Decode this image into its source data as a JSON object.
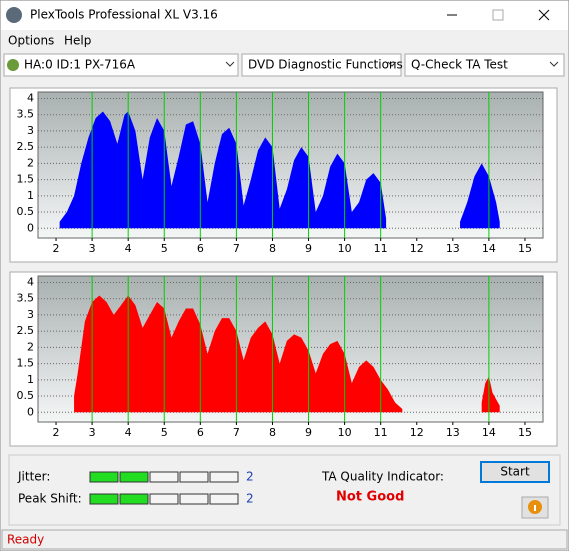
{
  "window_title": "PlexTools Professional XL V3.16",
  "menu": [
    "Options",
    "Help"
  ],
  "toolbar": {
    "drive": "HA:0 ID:1  PX-716A",
    "function": "DVD Diagnostic Functions",
    "test": "Q-Check TA Test"
  },
  "chart_data": [
    {
      "type": "area",
      "color": "#0000ff",
      "xlim": [
        1.5,
        15.5
      ],
      "ylim": [
        -0.3,
        4.2
      ],
      "xticks": [
        2,
        3,
        4,
        5,
        6,
        7,
        8,
        9,
        10,
        11,
        12,
        13,
        14,
        15
      ],
      "yticks": [
        0,
        0.5,
        1,
        1.5,
        2,
        2.5,
        3,
        3.5,
        4
      ],
      "grid": true,
      "markers": [
        3,
        4,
        5,
        6,
        7,
        8,
        9,
        10,
        11,
        14
      ],
      "x": [
        2.1,
        2.3,
        2.5,
        2.7,
        2.9,
        3.1,
        3.3,
        3.5,
        3.7,
        3.9,
        4.0,
        4.2,
        4.4,
        4.6,
        4.8,
        5.0,
        5.2,
        5.4,
        5.6,
        5.8,
        6.0,
        6.2,
        6.4,
        6.6,
        6.8,
        7.0,
        7.2,
        7.4,
        7.6,
        7.8,
        8.0,
        8.2,
        8.4,
        8.6,
        8.8,
        9.0,
        9.2,
        9.4,
        9.6,
        9.8,
        10.0,
        10.2,
        10.4,
        10.6,
        10.8,
        11.0,
        11.15,
        12.0,
        13.2,
        13.4,
        13.6,
        13.8,
        14.0,
        14.2,
        14.3
      ],
      "values": [
        0.2,
        0.5,
        1.0,
        2.0,
        2.8,
        3.4,
        3.6,
        3.3,
        2.6,
        3.5,
        3.6,
        3.0,
        1.5,
        2.8,
        3.4,
        3.0,
        1.3,
        2.2,
        3.2,
        3.3,
        2.6,
        0.8,
        2.0,
        2.9,
        3.1,
        2.6,
        0.7,
        1.5,
        2.4,
        2.8,
        2.5,
        0.6,
        1.2,
        2.1,
        2.5,
        2.2,
        0.5,
        1.0,
        1.9,
        2.3,
        2.0,
        0.5,
        0.8,
        1.5,
        1.7,
        1.4,
        0.3,
        null,
        0.2,
        0.8,
        1.6,
        2.0,
        1.6,
        0.8,
        0.2
      ]
    },
    {
      "type": "area",
      "color": "#ff0000",
      "xlim": [
        1.5,
        15.5
      ],
      "ylim": [
        -0.3,
        4.2
      ],
      "xticks": [
        2,
        3,
        4,
        5,
        6,
        7,
        8,
        9,
        10,
        11,
        12,
        13,
        14,
        15
      ],
      "yticks": [
        0,
        0.5,
        1,
        1.5,
        2,
        2.5,
        3,
        3.5,
        4
      ],
      "grid": true,
      "markers": [
        3,
        4,
        5,
        6,
        7,
        8,
        9,
        10,
        11,
        14
      ],
      "x": [
        2.5,
        2.6,
        2.8,
        3.0,
        3.2,
        3.4,
        3.6,
        3.8,
        4.0,
        4.2,
        4.4,
        4.6,
        4.8,
        5.0,
        5.2,
        5.4,
        5.6,
        5.8,
        6.0,
        6.2,
        6.4,
        6.6,
        6.8,
        7.0,
        7.2,
        7.4,
        7.6,
        7.8,
        8.0,
        8.2,
        8.4,
        8.6,
        8.8,
        9.0,
        9.2,
        9.4,
        9.6,
        9.8,
        10.0,
        10.2,
        10.4,
        10.6,
        10.8,
        11.0,
        11.2,
        11.4,
        11.6,
        12.5,
        13.8,
        13.9,
        14.0,
        14.1,
        14.3
      ],
      "values": [
        0.5,
        1.2,
        2.8,
        3.4,
        3.6,
        3.4,
        3.0,
        3.3,
        3.6,
        3.3,
        2.6,
        3.0,
        3.4,
        3.2,
        2.3,
        2.8,
        3.2,
        3.2,
        2.7,
        1.8,
        2.5,
        2.9,
        2.9,
        2.5,
        1.6,
        2.3,
        2.6,
        2.8,
        2.4,
        1.5,
        2.2,
        2.4,
        2.3,
        1.9,
        1.2,
        1.8,
        2.1,
        2.2,
        1.8,
        0.9,
        1.4,
        1.6,
        1.4,
        1.0,
        0.7,
        0.3,
        0.1,
        null,
        0.3,
        0.9,
        1.1,
        0.6,
        0.2
      ]
    }
  ],
  "jitter": {
    "label": "Jitter:",
    "value": 2,
    "scale_max": 5
  },
  "peak_shift": {
    "label": "Peak Shift:",
    "value": 2,
    "scale_max": 5
  },
  "ta_quality": {
    "label": "TA Quality Indicator:",
    "result": "Not Good"
  },
  "start_button": "Start",
  "status": "Ready"
}
